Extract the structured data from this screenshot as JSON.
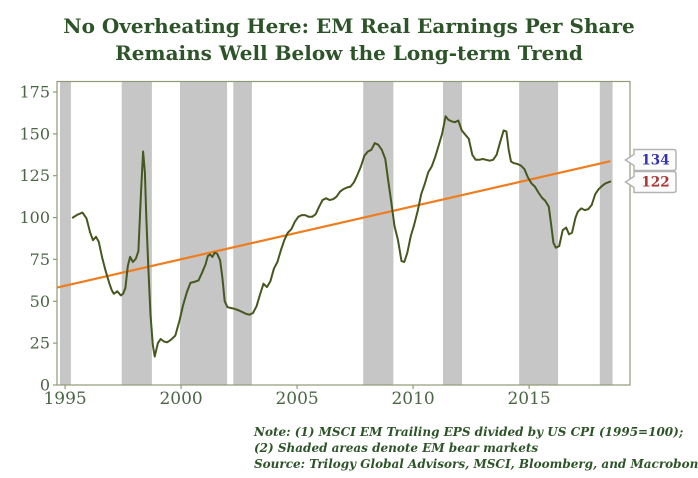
{
  "title": {
    "line1": "No Overheating Here: EM Real Earnings Per Share",
    "line2": "Remains Well Below the Long-term Trend"
  },
  "footnote": {
    "line1": "Note: (1) MSCI EM Trailing EPS divided by US CPI (1995=100);",
    "line2": "(2) Shaded areas denote EM bear markets",
    "line3": "Source: Trilogy Global Advisors, MSCI, Bloomberg, and Macrobond"
  },
  "chart_data": {
    "type": "line",
    "title": "No Overheating Here: EM Real Earnings Per Share Remains Well Below the Long-term Trend",
    "xlabel": "",
    "ylabel": "",
    "x_domain": [
      1994.65,
      2019.35
    ],
    "y_domain": [
      0,
      181.3
    ],
    "x_ticks": [
      1995,
      2000,
      2005,
      2010,
      2015
    ],
    "y_ticks": [
      0,
      25,
      50,
      75,
      100,
      125,
      150,
      175
    ],
    "grid": false,
    "legend": "none",
    "bands_meaning": "Shaded areas denote EM bear markets",
    "bear_market_bands": [
      [
        1994.78,
        1995.25
      ],
      [
        1997.44,
        1998.74
      ],
      [
        1999.95,
        2001.98
      ],
      [
        2002.25,
        2003.05
      ],
      [
        2007.85,
        2009.15
      ],
      [
        2011.29,
        2012.11
      ],
      [
        2014.57,
        2016.25
      ],
      [
        2018.05,
        2018.6
      ]
    ],
    "trend_line": {
      "name": "Long-term Trend",
      "color": "#ef7c1d",
      "start": [
        1994.65,
        58.2
      ],
      "end": [
        2018.5,
        133.7
      ],
      "end_label": "134",
      "label_color": "#3434b0"
    },
    "series": [
      {
        "name": "MSCI EM Trailing EPS divided by US CPI (1995=100)",
        "color": "#46571f",
        "end_label": "122",
        "label_color": "#a93434",
        "points": [
          [
            1995.33,
            100
          ],
          [
            1995.5,
            101.5
          ],
          [
            1995.75,
            103
          ],
          [
            1995.92,
            99.5
          ],
          [
            1996.08,
            91
          ],
          [
            1996.2,
            86.5
          ],
          [
            1996.33,
            88.5
          ],
          [
            1996.45,
            85.5
          ],
          [
            1996.6,
            76
          ],
          [
            1996.75,
            68
          ],
          [
            1996.9,
            61
          ],
          [
            1997.0,
            57
          ],
          [
            1997.1,
            54.5
          ],
          [
            1997.25,
            56
          ],
          [
            1997.4,
            53.5
          ],
          [
            1997.5,
            54.5
          ],
          [
            1997.6,
            58
          ],
          [
            1997.7,
            71
          ],
          [
            1997.8,
            76.5
          ],
          [
            1997.92,
            73.5
          ],
          [
            1998.05,
            75.5
          ],
          [
            1998.16,
            80
          ],
          [
            1998.27,
            115
          ],
          [
            1998.36,
            139.5
          ],
          [
            1998.44,
            127
          ],
          [
            1998.5,
            100
          ],
          [
            1998.58,
            72
          ],
          [
            1998.68,
            42
          ],
          [
            1998.78,
            24
          ],
          [
            1998.86,
            17
          ],
          [
            1999.0,
            25
          ],
          [
            1999.12,
            27.5
          ],
          [
            1999.26,
            26
          ],
          [
            1999.4,
            25.5
          ],
          [
            1999.56,
            27
          ],
          [
            1999.75,
            29.5
          ],
          [
            1999.92,
            38
          ],
          [
            2000.08,
            47.5
          ],
          [
            2000.25,
            55.5
          ],
          [
            2000.4,
            61
          ],
          [
            2000.55,
            61.5
          ],
          [
            2000.75,
            62.5
          ],
          [
            2000.9,
            67
          ],
          [
            2001.05,
            72
          ],
          [
            2001.15,
            77
          ],
          [
            2001.25,
            78
          ],
          [
            2001.35,
            76.5
          ],
          [
            2001.45,
            79
          ],
          [
            2001.55,
            78.5
          ],
          [
            2001.68,
            74.5
          ],
          [
            2001.78,
            64
          ],
          [
            2001.88,
            50
          ],
          [
            2002.0,
            46.5
          ],
          [
            2002.15,
            46
          ],
          [
            2002.3,
            45.5
          ],
          [
            2002.5,
            44.5
          ],
          [
            2002.65,
            43.5
          ],
          [
            2002.8,
            42.5
          ],
          [
            2002.95,
            42
          ],
          [
            2003.1,
            43
          ],
          [
            2003.25,
            47
          ],
          [
            2003.4,
            54
          ],
          [
            2003.55,
            60.5
          ],
          [
            2003.7,
            58.5
          ],
          [
            2003.85,
            62
          ],
          [
            2004.0,
            69.5
          ],
          [
            2004.15,
            73.5
          ],
          [
            2004.3,
            80.5
          ],
          [
            2004.45,
            86.5
          ],
          [
            2004.6,
            91
          ],
          [
            2004.75,
            93
          ],
          [
            2004.9,
            97.5
          ],
          [
            2005.05,
            100.5
          ],
          [
            2005.2,
            101.5
          ],
          [
            2005.35,
            101.5
          ],
          [
            2005.5,
            100.5
          ],
          [
            2005.65,
            100.5
          ],
          [
            2005.8,
            102
          ],
          [
            2005.95,
            106.5
          ],
          [
            2006.1,
            110.5
          ],
          [
            2006.25,
            111.5
          ],
          [
            2006.4,
            110.5
          ],
          [
            2006.55,
            111
          ],
          [
            2006.7,
            112.5
          ],
          [
            2006.85,
            115.5
          ],
          [
            2007.0,
            117
          ],
          [
            2007.15,
            118
          ],
          [
            2007.3,
            118.5
          ],
          [
            2007.45,
            121
          ],
          [
            2007.6,
            125.5
          ],
          [
            2007.75,
            130.5
          ],
          [
            2007.9,
            137
          ],
          [
            2008.05,
            139.5
          ],
          [
            2008.2,
            140.5
          ],
          [
            2008.35,
            144.5
          ],
          [
            2008.5,
            143.5
          ],
          [
            2008.65,
            140.5
          ],
          [
            2008.8,
            135
          ],
          [
            2008.92,
            123
          ],
          [
            2009.05,
            110
          ],
          [
            2009.2,
            95
          ],
          [
            2009.35,
            86.5
          ],
          [
            2009.5,
            74
          ],
          [
            2009.62,
            73.5
          ],
          [
            2009.75,
            79
          ],
          [
            2009.9,
            89
          ],
          [
            2010.05,
            96
          ],
          [
            2010.2,
            104
          ],
          [
            2010.35,
            114
          ],
          [
            2010.5,
            120
          ],
          [
            2010.65,
            127
          ],
          [
            2010.8,
            130.5
          ],
          [
            2010.95,
            136
          ],
          [
            2011.1,
            143
          ],
          [
            2011.25,
            150
          ],
          [
            2011.4,
            160.5
          ],
          [
            2011.52,
            158.5
          ],
          [
            2011.65,
            157.5
          ],
          [
            2011.8,
            157
          ],
          [
            2011.95,
            158
          ],
          [
            2012.1,
            152
          ],
          [
            2012.25,
            149.5
          ],
          [
            2012.4,
            147
          ],
          [
            2012.55,
            137.5
          ],
          [
            2012.7,
            134.5
          ],
          [
            2012.85,
            134.5
          ],
          [
            2013.0,
            135
          ],
          [
            2013.15,
            134.5
          ],
          [
            2013.3,
            134
          ],
          [
            2013.45,
            134.5
          ],
          [
            2013.6,
            137.5
          ],
          [
            2013.75,
            145
          ],
          [
            2013.9,
            152
          ],
          [
            2014.02,
            151.5
          ],
          [
            2014.12,
            140.5
          ],
          [
            2014.22,
            133.5
          ],
          [
            2014.35,
            132.5
          ],
          [
            2014.5,
            132
          ],
          [
            2014.65,
            131
          ],
          [
            2014.8,
            129
          ],
          [
            2014.95,
            124
          ],
          [
            2015.1,
            120.5
          ],
          [
            2015.25,
            118.5
          ],
          [
            2015.4,
            115
          ],
          [
            2015.55,
            112
          ],
          [
            2015.7,
            110
          ],
          [
            2015.85,
            106.5
          ],
          [
            2015.95,
            96
          ],
          [
            2016.05,
            85
          ],
          [
            2016.15,
            82
          ],
          [
            2016.3,
            83
          ],
          [
            2016.45,
            92.5
          ],
          [
            2016.6,
            94
          ],
          [
            2016.72,
            90
          ],
          [
            2016.85,
            91
          ],
          [
            2017.0,
            100
          ],
          [
            2017.1,
            103.5
          ],
          [
            2017.25,
            105.5
          ],
          [
            2017.4,
            104.5
          ],
          [
            2017.55,
            105
          ],
          [
            2017.7,
            107.5
          ],
          [
            2017.85,
            114
          ],
          [
            2018.0,
            117
          ],
          [
            2018.15,
            119
          ],
          [
            2018.3,
            120.5
          ],
          [
            2018.5,
            121.5
          ]
        ]
      }
    ],
    "colors": {
      "background": "#ffffff",
      "title_text": "#2d5428",
      "axis_text": "#4a6645",
      "tick_mark": "#8f9b75",
      "frame": "#8f9b75",
      "band": "#c6c6c6",
      "flag_bg": "#fcfcfc",
      "flag_border": "#b3b3b3"
    }
  }
}
